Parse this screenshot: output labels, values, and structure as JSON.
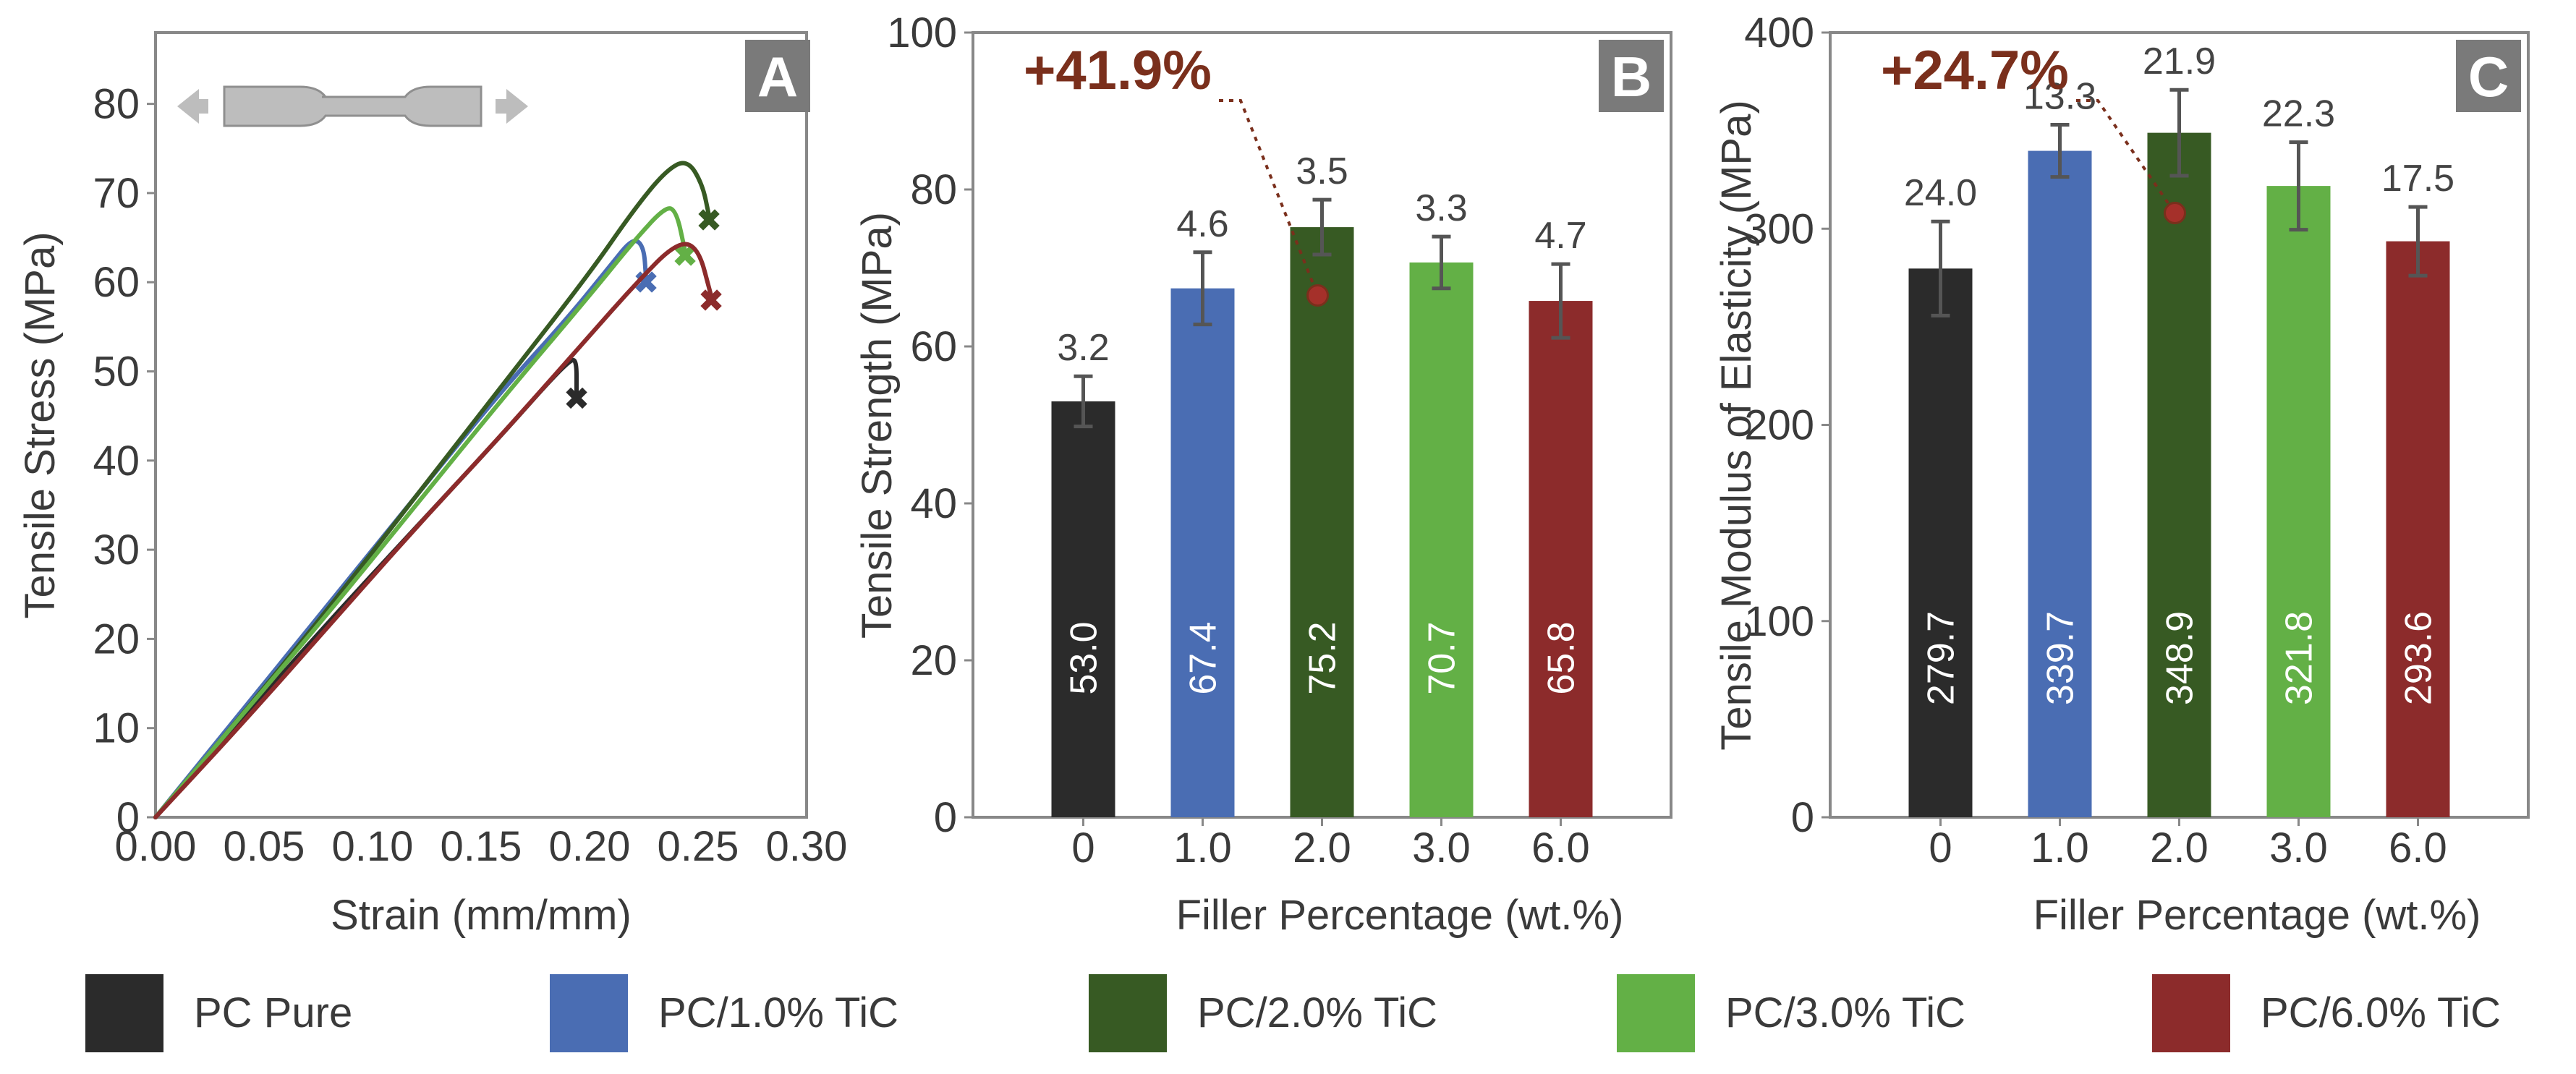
{
  "colors": {
    "pc_pure": "#2b2b2b",
    "pc_1": "#4a6db3",
    "pc_2": "#375a23",
    "pc_3": "#63b046",
    "pc_6": "#8c2b2b",
    "axis": "#888888",
    "annotation": "#7a2f1c",
    "letter_bg": "#7a7a7a",
    "error": "#555555"
  },
  "legend": [
    {
      "label": "PC Pure",
      "color_key": "pc_pure"
    },
    {
      "label": "PC/1.0% TiC",
      "color_key": "pc_1"
    },
    {
      "label": "PC/2.0% TiC",
      "color_key": "pc_2"
    },
    {
      "label": "PC/3.0% TiC",
      "color_key": "pc_3"
    },
    {
      "label": "PC/6.0% TiC",
      "color_key": "pc_6"
    }
  ],
  "chart_data": [
    {
      "panel": "A",
      "type": "line",
      "xlabel": "Strain (mm/mm)",
      "ylabel": "Tensile Stress (MPa)",
      "xlim": [
        0,
        0.3
      ],
      "ylim": [
        0,
        88
      ],
      "xticks": [
        "0.00",
        "0.05",
        "0.10",
        "0.15",
        "0.20",
        "0.25",
        "0.30"
      ],
      "xtick_values": [
        0,
        0.05,
        0.1,
        0.15,
        0.2,
        0.25,
        0.3
      ],
      "yticks": [
        "0",
        "10",
        "20",
        "30",
        "40",
        "50",
        "60",
        "70",
        "80"
      ],
      "ytick_values": [
        0,
        10,
        20,
        30,
        40,
        50,
        60,
        70,
        80
      ],
      "series": [
        {
          "name": "PC Pure",
          "color_key": "pc_pure",
          "x": [
            0,
            0.04,
            0.08,
            0.12,
            0.16,
            0.18,
            0.19,
            0.194,
            0.194
          ],
          "y": [
            0,
            11,
            22,
            32.5,
            43,
            48.5,
            51,
            51.5,
            47.5
          ],
          "break": [
            0.194,
            47
          ]
        },
        {
          "name": "PC/1.0% TiC",
          "color_key": "pc_1",
          "x": [
            0,
            0.04,
            0.08,
            0.12,
            0.16,
            0.19,
            0.21,
            0.22,
            0.225,
            0.226
          ],
          "y": [
            0,
            12,
            24,
            36,
            48,
            56,
            62,
            65,
            64,
            60.5
          ],
          "break": [
            0.226,
            60
          ]
        },
        {
          "name": "PC/2.0% TiC",
          "color_key": "pc_2",
          "x": [
            0,
            0.04,
            0.08,
            0.12,
            0.16,
            0.2,
            0.22,
            0.235,
            0.245,
            0.252,
            0.255
          ],
          "y": [
            0,
            11.5,
            23.5,
            36,
            48.5,
            61,
            68,
            72.5,
            73.8,
            71,
            67.5
          ],
          "break": [
            0.255,
            67
          ]
        },
        {
          "name": "PC/3.0% TiC",
          "color_key": "pc_3",
          "x": [
            0,
            0.04,
            0.08,
            0.12,
            0.16,
            0.2,
            0.22,
            0.235,
            0.24,
            0.244
          ],
          "y": [
            0,
            11.5,
            23,
            35,
            47,
            58.5,
            64.5,
            68.5,
            68,
            63.5
          ],
          "break": [
            0.244,
            63
          ]
        },
        {
          "name": "PC/6.0% TiC",
          "color_key": "pc_6",
          "x": [
            0,
            0.04,
            0.08,
            0.12,
            0.16,
            0.2,
            0.22,
            0.24,
            0.25,
            0.256
          ],
          "y": [
            0,
            10.5,
            21.5,
            32.5,
            43,
            54,
            59.5,
            64.5,
            64,
            58.5
          ],
          "break": [
            0.256,
            58
          ]
        }
      ]
    },
    {
      "panel": "B",
      "type": "bar",
      "xlabel": "Filler Percentage (wt.%)",
      "ylabel": "Tensile Strength (MPa)",
      "ylim": [
        0,
        100
      ],
      "yticks": [
        "0",
        "20",
        "40",
        "60",
        "80",
        "100"
      ],
      "ytick_values": [
        0,
        20,
        40,
        60,
        80,
        100
      ],
      "categories": [
        "0",
        "1.0",
        "2.0",
        "3.0",
        "6.0"
      ],
      "values": [
        53.0,
        67.4,
        75.2,
        70.7,
        65.8
      ],
      "value_labels": [
        "53.0",
        "67.4",
        "75.2",
        "70.7",
        "65.8"
      ],
      "errors": [
        3.2,
        4.6,
        3.5,
        3.3,
        4.7
      ],
      "error_labels": [
        "3.2",
        "4.6",
        "3.5",
        "3.3",
        "4.7"
      ],
      "annotation": {
        "text": "+41.9%",
        "bar_index": 2,
        "point_value": 66.5
      }
    },
    {
      "panel": "C",
      "type": "bar",
      "xlabel": "Filler Percentage (wt.%)",
      "ylabel": "Tensile Modulus of Elasticity (MPa)",
      "ylim": [
        0,
        400
      ],
      "yticks": [
        "0",
        "100",
        "200",
        "300",
        "400"
      ],
      "ytick_values": [
        0,
        100,
        200,
        300,
        400
      ],
      "categories": [
        "0",
        "1.0",
        "2.0",
        "3.0",
        "6.0"
      ],
      "values": [
        279.7,
        339.7,
        348.9,
        321.8,
        293.6
      ],
      "value_labels": [
        "279.7",
        "339.7",
        "348.9",
        "321.8",
        "293.6"
      ],
      "errors": [
        24.0,
        13.3,
        21.9,
        22.3,
        17.5
      ],
      "error_labels": [
        "24.0",
        "13.3",
        "21.9",
        "22.3",
        "17.5"
      ],
      "annotation": {
        "text": "+24.7%",
        "bar_index": 2,
        "point_value": 308
      }
    }
  ]
}
